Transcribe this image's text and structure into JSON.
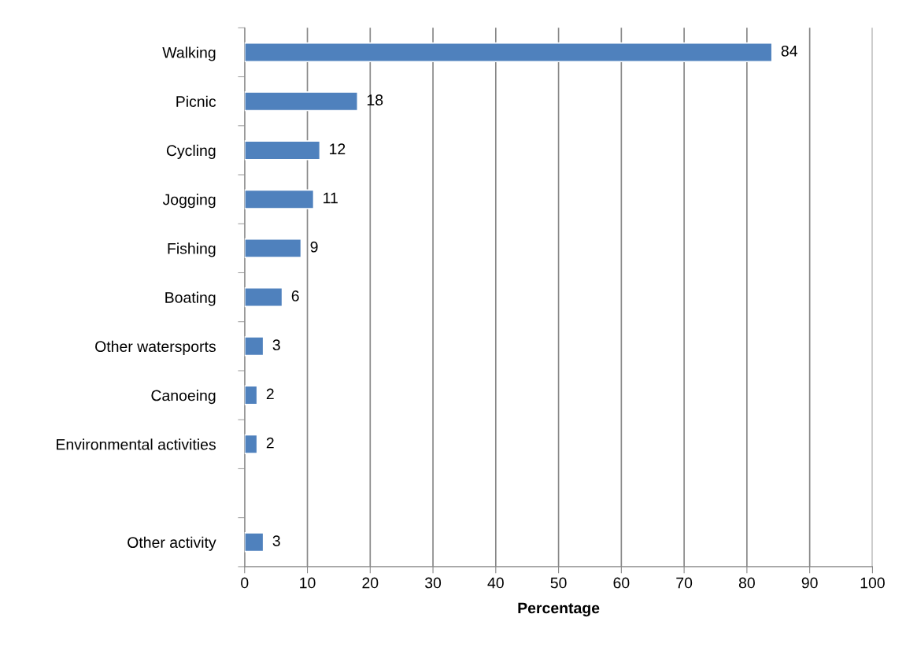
{
  "chart_data": {
    "type": "bar",
    "orientation": "horizontal",
    "xlabel": "Percentage",
    "categories": [
      "Walking",
      "Picnic",
      "Cycling",
      "Jogging",
      "Fishing",
      "Boating",
      "Other watersports",
      "Canoeing",
      "Environmental activities",
      null,
      "Other activity"
    ],
    "values": [
      84,
      18,
      12,
      11,
      9,
      6,
      3,
      2,
      2,
      null,
      3
    ],
    "color": "#4f81bd",
    "xlim": [
      0,
      100
    ],
    "xticks": [
      0,
      10,
      20,
      30,
      40,
      50,
      60,
      70,
      80,
      90,
      100
    ],
    "grid": "x",
    "data_labels": true
  }
}
